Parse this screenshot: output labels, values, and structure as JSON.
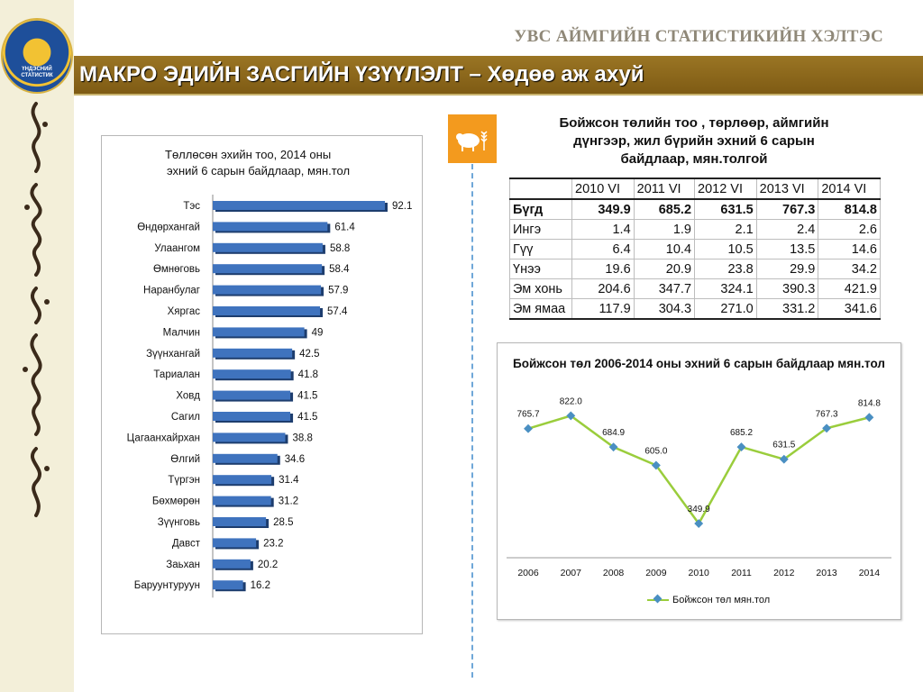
{
  "header": {
    "org_name": "УВС АЙМГИЙН СТАТИСТИКИЙН ХЭЛТЭС",
    "title": "МАКРО ЭДИЙН ЗАСГИЙН ҮЗҮҮЛЭЛТ – Хөдөө аж ахуй",
    "logo_text_line1": "ҮНДЭСНИЙ",
    "logo_text_line2": "СТАТИСТИК"
  },
  "colors": {
    "title_band": "#8a6519",
    "bar_fill": "#3f73be",
    "line": "#9acd3c",
    "marker": "#4a8fc2",
    "icon_bg": "#f39a1e",
    "divider": "#6fa7d8"
  },
  "icons": {
    "sheep": "sheep-wheat-icon",
    "logo": "emblem-logo"
  },
  "table": {
    "title_line1": "Бойжсон төлийн тоо , төрлөөр, аймгийн",
    "title_line2": "дүнгээр, жил бүрийн эхний 6 сарын",
    "title_line3": "байдлаар, мян.толгой",
    "headers": [
      "",
      "2010 VI",
      "2011 VI",
      "2012 VI",
      "2013 VI",
      "2014 VI"
    ],
    "rows": [
      {
        "label": "Бүгд",
        "values": [
          "349.9",
          "685.2",
          "631.5",
          "767.3",
          "814.8"
        ]
      },
      {
        "label": "Ингэ",
        "values": [
          "1.4",
          "1.9",
          "2.1",
          "2.4",
          "2.6"
        ]
      },
      {
        "label": "Гүү",
        "values": [
          "6.4",
          "10.4",
          "10.5",
          "13.5",
          "14.6"
        ]
      },
      {
        "label": "Үнээ",
        "values": [
          "19.6",
          "20.9",
          "23.8",
          "29.9",
          "34.2"
        ]
      },
      {
        "label": "Эм хонь",
        "values": [
          "204.6",
          "347.7",
          "324.1",
          "390.3",
          "421.9"
        ]
      },
      {
        "label": "Эм ямаа",
        "values": [
          "117.9",
          "304.3",
          "271.0",
          "331.2",
          "341.6"
        ]
      }
    ]
  },
  "chart_data": [
    {
      "type": "bar",
      "orientation": "horizontal",
      "title_line1": "Төллөсөн эхийн тоо, 2014 оны",
      "title_line2": "эхний 6 сарын байдлаар, мян.тол",
      "categories": [
        "Тэс",
        "Өндөрхангай",
        "Улаангом",
        "Өмнөговь",
        "Наранбулаг",
        "Хяргас",
        "Малчин",
        "Зүүнхангай",
        "Тариалан",
        "Ховд",
        "Сагил",
        "Цагаанхайрхан",
        "Өлгий",
        "Түргэн",
        "Бөхмөрөн",
        "Зүүнговь",
        "Давст",
        "Заьхан",
        "Баруунтуруун"
      ],
      "values": [
        92.1,
        61.4,
        58.8,
        58.4,
        57.9,
        57.4,
        49,
        42.5,
        41.8,
        41.5,
        41.5,
        38.8,
        34.6,
        31.4,
        31.2,
        28.5,
        23.2,
        20.2,
        16.2
      ],
      "value_labels": [
        "92.1",
        "61.4",
        "58.8",
        "58.4",
        "57.9",
        "57.4",
        "49",
        "42.5",
        "41.8",
        "41.5",
        "41.5",
        "38.8",
        "34.6",
        "31.4",
        "31.2",
        "28.5",
        "23.2",
        "20.2",
        "16.2"
      ],
      "xlim": [
        0,
        100
      ],
      "grid": false
    },
    {
      "type": "line",
      "title": "Бойжсон төл 2006-2014 оны эхний 6 сарын байдлаар мян.тол",
      "x": [
        "2006",
        "2007",
        "2008",
        "2009",
        "2010",
        "2011",
        "2012",
        "2013",
        "2014"
      ],
      "series": [
        {
          "name": "Бойжсон төл мян.тол",
          "values": [
            765.7,
            822.0,
            684.9,
            605.0,
            349.9,
            685.2,
            631.5,
            767.3,
            814.8
          ],
          "labels": [
            "765.7",
            "822.0",
            "684.9",
            "605.0",
            "349.9",
            "685.2",
            "631.5",
            "767.3",
            "814.8"
          ]
        }
      ],
      "ylim": [
        200,
        950
      ],
      "legend": "bottom",
      "grid": false
    }
  ]
}
